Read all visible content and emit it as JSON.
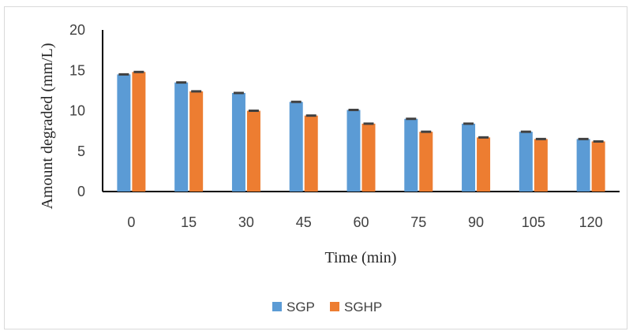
{
  "chart_data": {
    "type": "bar",
    "title": "",
    "xlabel": "Time (min)",
    "ylabel": "Amount degraded (mm/L)",
    "ylim": [
      0,
      20
    ],
    "yticks": [
      "0",
      "5",
      "10",
      "15",
      "20"
    ],
    "categories": [
      "0",
      "15",
      "30",
      "45",
      "60",
      "75",
      "90",
      "105",
      "120"
    ],
    "series": [
      {
        "name": "SGP",
        "color": "#5b9bd5",
        "values": [
          14.5,
          13.5,
          12.2,
          11.1,
          10.1,
          9.0,
          8.4,
          7.4,
          6.5
        ]
      },
      {
        "name": "SGHP",
        "color": "#ed7d31",
        "values": [
          14.8,
          12.4,
          10.0,
          9.4,
          8.4,
          7.4,
          6.7,
          6.5,
          6.2
        ]
      }
    ],
    "error_bars": true,
    "grid": false,
    "legend_position": "bottom"
  }
}
